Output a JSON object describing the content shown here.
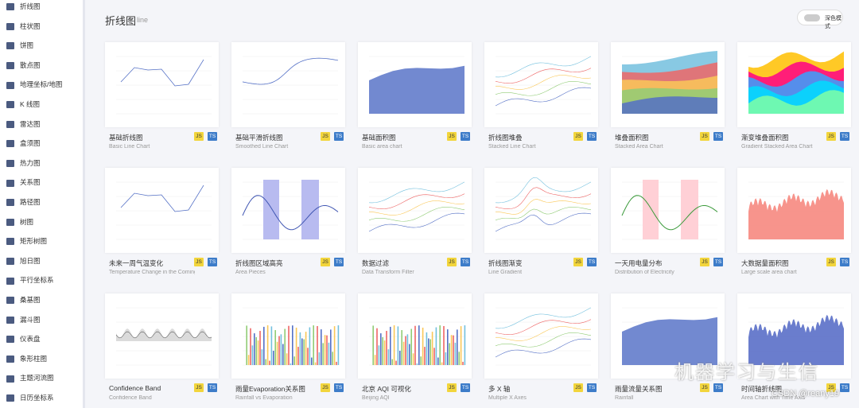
{
  "sidebar": [
    "折线图",
    "柱状图",
    "饼图",
    "散点图",
    "地理坐标/地图",
    "K 线图",
    "雷达图",
    "盒须图",
    "热力图",
    "关系图",
    "路径图",
    "树图",
    "矩形树图",
    "旭日图",
    "平行坐标系",
    "桑基图",
    "漏斗图",
    "仪表盘",
    "象形柱图",
    "主题河流图",
    "日历坐标系"
  ],
  "header": {
    "title": "折线图",
    "subtitle": "line",
    "toggle": "深色模式"
  },
  "badges": [
    "JS",
    "TS"
  ],
  "cards": [
    {
      "title": "基础折线图",
      "subtitle": "Basic Line Chart"
    },
    {
      "title": "基础平滑折线图",
      "subtitle": "Smoothed Line Chart"
    },
    {
      "title": "基础面积图",
      "subtitle": "Basic area chart"
    },
    {
      "title": "折线图堆叠",
      "subtitle": "Stacked Line Chart"
    },
    {
      "title": "堆叠面积图",
      "subtitle": "Stacked Area Chart"
    },
    {
      "title": "渐变堆叠面积图",
      "subtitle": "Gradient Stacked Area Chart"
    },
    {
      "title": "未来一周气温变化",
      "subtitle": "Temperature Change in the Coming Week"
    },
    {
      "title": "折线图区域高亮",
      "subtitle": "Area Pieces"
    },
    {
      "title": "数据过滤",
      "subtitle": "Data Transform Filter"
    },
    {
      "title": "折线图渐变",
      "subtitle": "Line Gradient"
    },
    {
      "title": "一天用电量分布",
      "subtitle": "Distribution of Electricity"
    },
    {
      "title": "大数据量面积图",
      "subtitle": "Large scale area chart"
    },
    {
      "title": "Confidence Band",
      "subtitle": "Confidence Band"
    },
    {
      "title": "雨量Evaporation关系图",
      "subtitle": "Rainfall vs Evaporation"
    },
    {
      "title": "北京 AQI 可视化",
      "subtitle": "Beijing AQI"
    },
    {
      "title": "多 X 轴",
      "subtitle": "Multiple X Axes"
    },
    {
      "title": "雨量流量关系图",
      "subtitle": "Rainfall"
    },
    {
      "title": "时间轴折线图",
      "subtitle": "Area Chart with Time Axis"
    }
  ],
  "watermark": {
    "brand": "机器学习与生信",
    "credit": "CSDN @reany19"
  }
}
